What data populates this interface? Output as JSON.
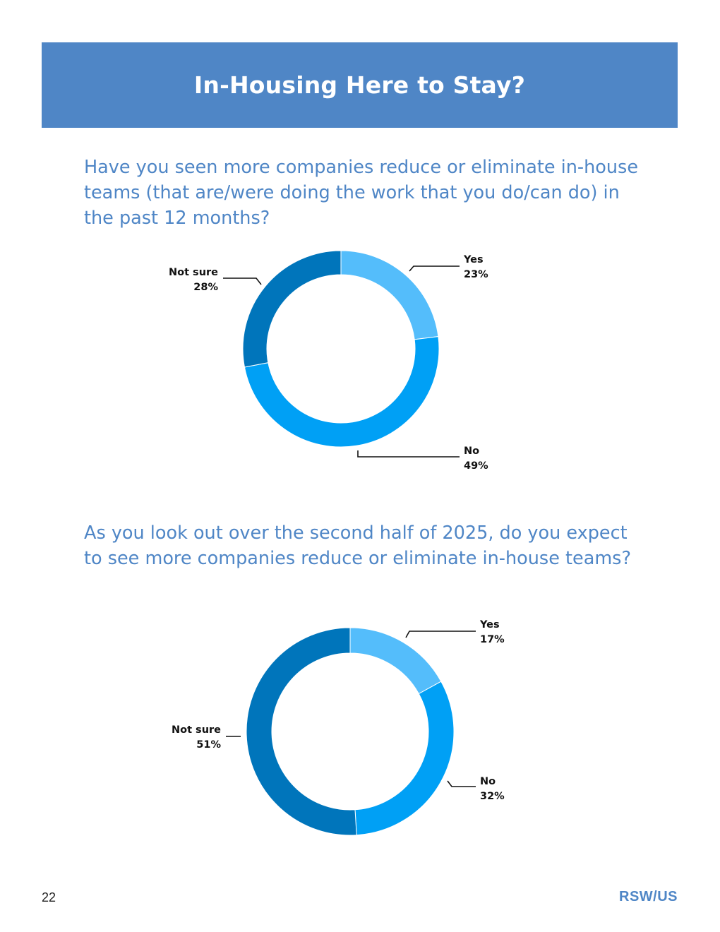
{
  "header": {
    "title": "In-Housing Here to Stay?"
  },
  "questions": [
    "Have you seen more companies reduce or eliminate in-house teams (that are/were doing the work that you do/can do) in the past 12 months?",
    "As you look out over the second half of 2025, do you expect to see more companies reduce or eliminate in-house teams?"
  ],
  "colors": {
    "yes": "#54bdfb",
    "no": "#00a0f5",
    "not_sure": "#0075bb",
    "accent": "#4f86c6"
  },
  "chart_data": [
    {
      "type": "pie",
      "donut": true,
      "categories": [
        "Yes",
        "No",
        "Not sure"
      ],
      "values": [
        23,
        49,
        28
      ],
      "labels": [
        "Yes",
        "No",
        "Not sure"
      ],
      "value_labels": [
        "23%",
        "49%",
        "28%"
      ]
    },
    {
      "type": "pie",
      "donut": true,
      "categories": [
        "Yes",
        "No",
        "Not sure"
      ],
      "values": [
        17,
        32,
        51
      ],
      "labels": [
        "Yes",
        "No",
        "Not sure"
      ],
      "value_labels": [
        "17%",
        "32%",
        "51%"
      ]
    }
  ],
  "footer": {
    "page_number": "22",
    "brand": "RSW/US"
  }
}
